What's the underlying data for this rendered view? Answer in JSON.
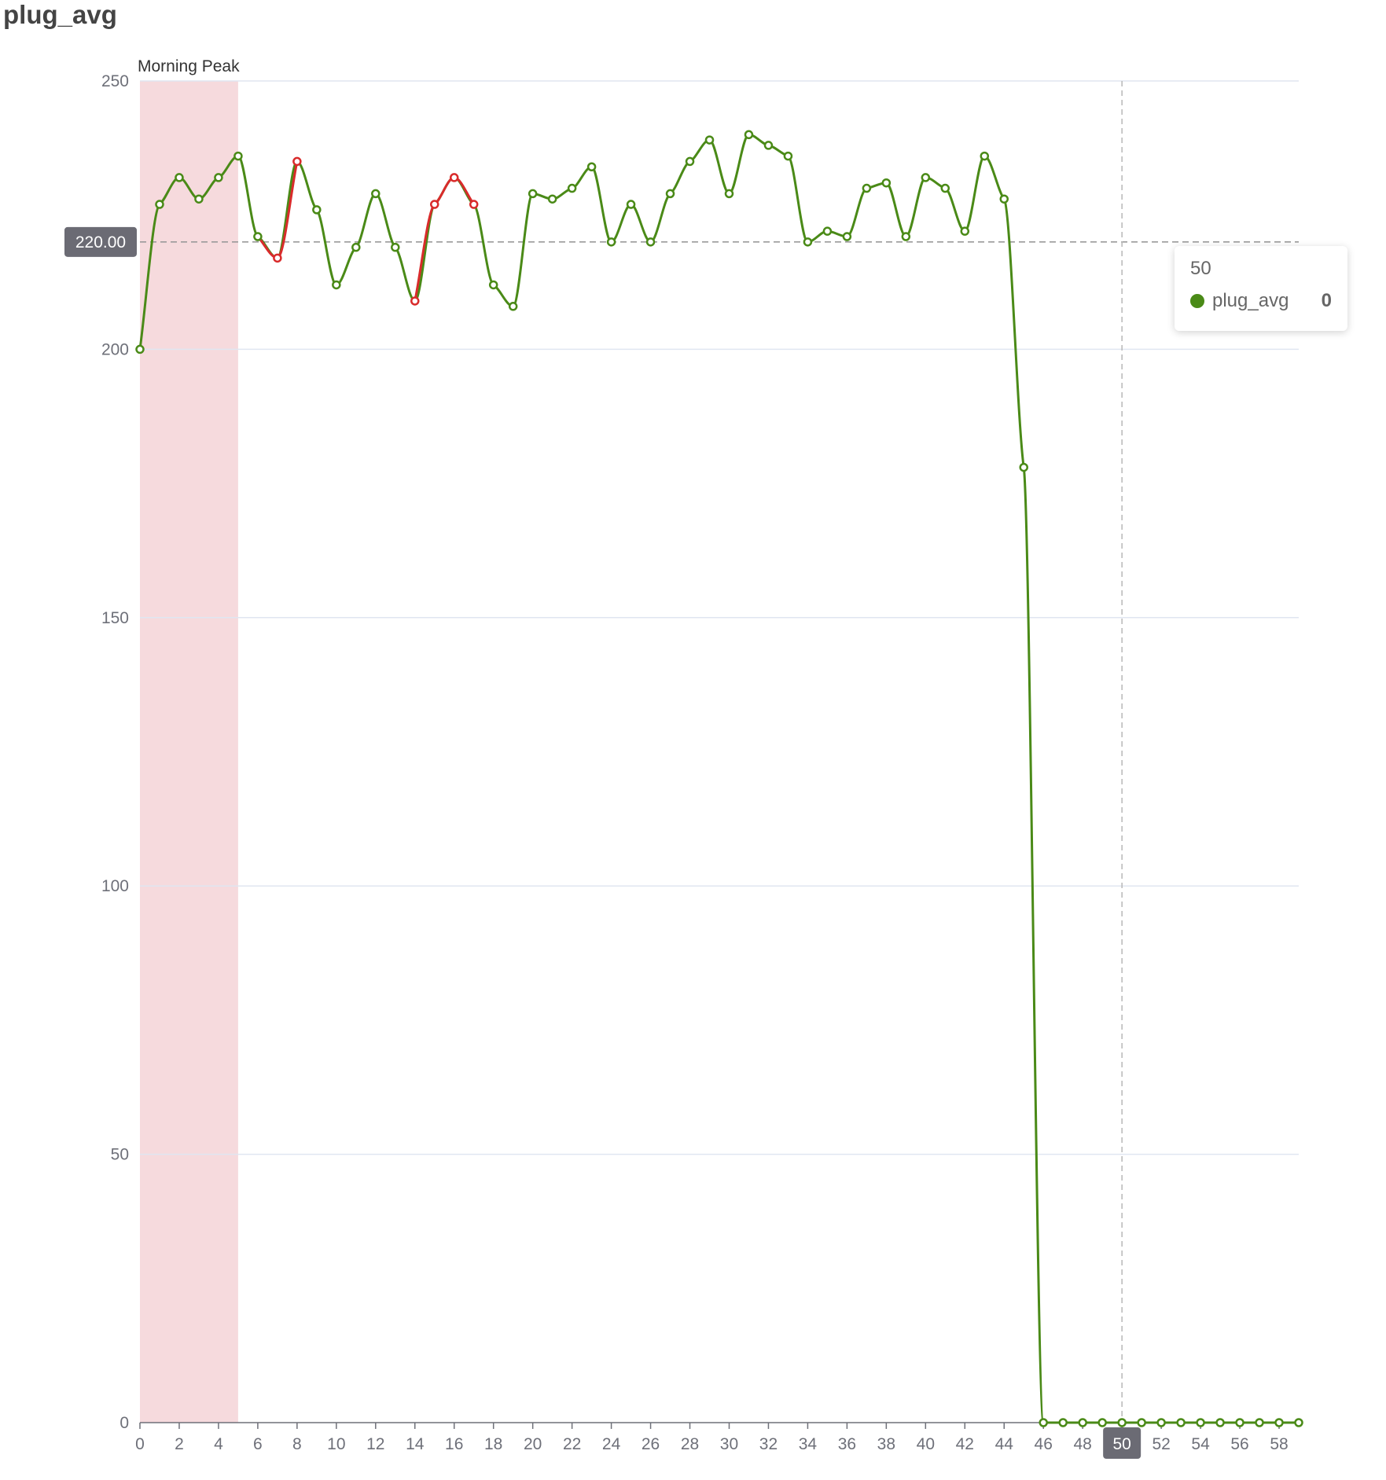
{
  "page": {
    "title": "plug_avg"
  },
  "chart_data": {
    "type": "line",
    "title": "plug_avg",
    "smooth": true,
    "x": [
      0,
      1,
      2,
      3,
      4,
      5,
      6,
      7,
      8,
      9,
      10,
      11,
      12,
      13,
      14,
      15,
      16,
      17,
      18,
      19,
      20,
      21,
      22,
      23,
      24,
      25,
      26,
      27,
      28,
      29,
      30,
      31,
      32,
      33,
      34,
      35,
      36,
      37,
      38,
      39,
      40,
      41,
      42,
      43,
      44,
      45,
      46,
      47,
      48,
      49,
      50,
      51,
      52,
      53,
      54,
      55,
      56,
      57,
      58,
      59
    ],
    "x_tick_labels": [
      "0",
      "2",
      "4",
      "6",
      "8",
      "10",
      "12",
      "14",
      "16",
      "18",
      "20",
      "22",
      "24",
      "26",
      "28",
      "30",
      "32",
      "34",
      "36",
      "38",
      "40",
      "42",
      "44",
      "46",
      "48",
      "50",
      "52",
      "54",
      "56",
      "58"
    ],
    "xlim": [
      0,
      59
    ],
    "y_tick_labels": [
      "0",
      "50",
      "100",
      "150",
      "200",
      "250"
    ],
    "ylim": [
      0,
      250
    ],
    "grid": true,
    "series": [
      {
        "name": "plug_avg",
        "color": "#4a8a17",
        "values": [
          200,
          227,
          232,
          228,
          232,
          236,
          221,
          217,
          235,
          226,
          212,
          219,
          229,
          219,
          209,
          227,
          232,
          227,
          212,
          208,
          229,
          228,
          230,
          234,
          220,
          227,
          220,
          229,
          235,
          239,
          229,
          240,
          238,
          236,
          220,
          222,
          221,
          230,
          231,
          221,
          232,
          230,
          222,
          236,
          228,
          178,
          0,
          0,
          0,
          0,
          0,
          0,
          0,
          0,
          0,
          0,
          0,
          0,
          0,
          0
        ]
      }
    ],
    "threshold": {
      "value": 220,
      "label": "220.00",
      "above_color": "#4a8a17",
      "below_color": "#d92b2b"
    },
    "mark_area": {
      "label": "Morning Peak",
      "x_start": 0,
      "x_end": 5,
      "color": "#f6dadd"
    },
    "axis_pointer": {
      "x": 50,
      "label": "50"
    },
    "tooltip": {
      "title": "50",
      "series_name": "plug_avg",
      "value": "0"
    }
  }
}
